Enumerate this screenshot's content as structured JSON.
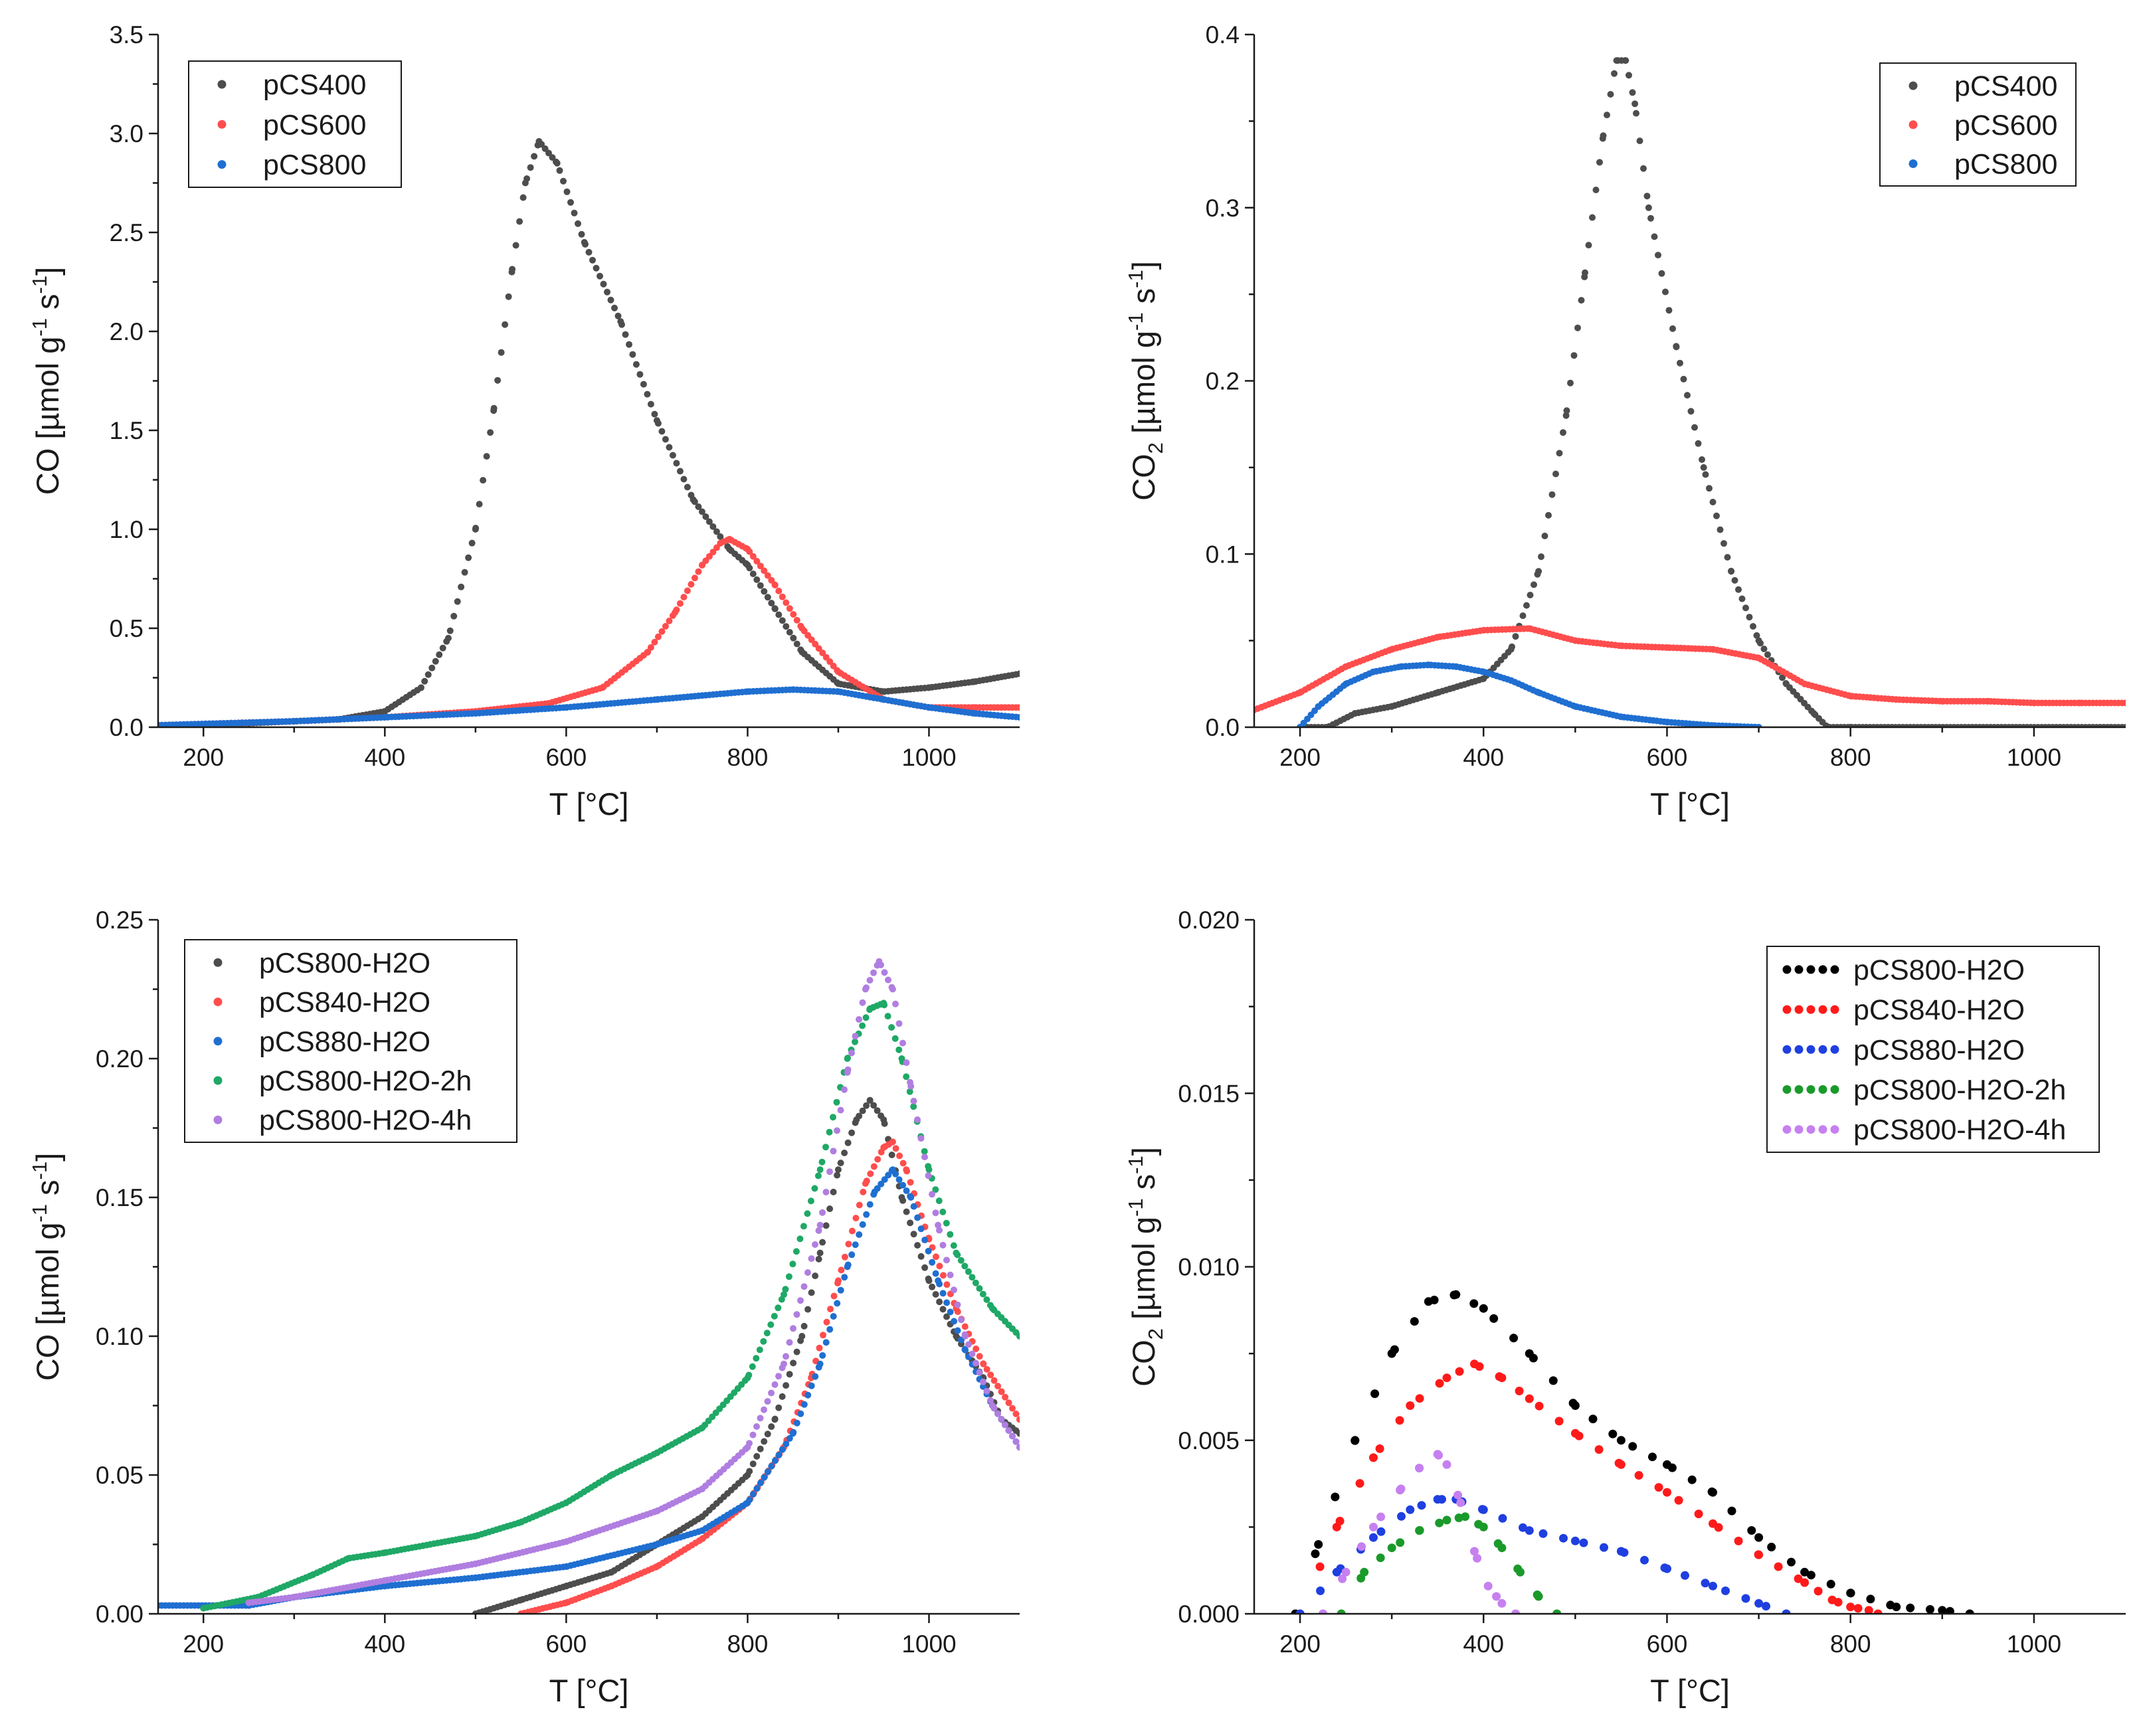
{
  "chart_data": [
    {
      "type": "scatter",
      "panel": "top-left",
      "xlabel": "T [°C]",
      "ylabel": "CO [µmol g⁻¹ s⁻¹]",
      "ylabel_parts": {
        "pre": "CO [µmol g",
        "sup1": "-1",
        "mid": " s",
        "sup2": "-1",
        "post": "]"
      },
      "xlim": [
        150,
        1100
      ],
      "ylim": [
        0,
        3.5
      ],
      "xticks": [
        200,
        400,
        600,
        800,
        1000
      ],
      "xtick_labels": [
        "200",
        "400",
        "600",
        "800",
        "1000"
      ],
      "yticks": [
        0,
        0.5,
        1.0,
        1.5,
        2.0,
        2.5,
        3.0,
        3.5
      ],
      "ytick_labels": [
        "0.0",
        "0.5",
        "1.0",
        "1.5",
        "2.0",
        "2.5",
        "3.0",
        "3.5"
      ],
      "legend_position": "top-left",
      "series": [
        {
          "name": "pCS400",
          "color": "#4d4d4d",
          "x": [
            150,
            250,
            350,
            400,
            440,
            470,
            500,
            520,
            540,
            555,
            570,
            590,
            620,
            660,
            700,
            740,
            780,
            800,
            830,
            860,
            900,
            950,
            1000,
            1050,
            1100
          ],
          "y": [
            0.01,
            0.02,
            0.04,
            0.08,
            0.2,
            0.45,
            1.0,
            1.6,
            2.3,
            2.75,
            2.96,
            2.85,
            2.45,
            2.05,
            1.55,
            1.15,
            0.9,
            0.82,
            0.6,
            0.38,
            0.22,
            0.18,
            0.2,
            0.23,
            0.27
          ]
        },
        {
          "name": "pCS600",
          "color": "#ff4d4d",
          "x": [
            150,
            300,
            400,
            500,
            580,
            640,
            690,
            720,
            750,
            770,
            780,
            800,
            830,
            860,
            900,
            950,
            1000,
            1050,
            1100
          ],
          "y": [
            0.01,
            0.03,
            0.05,
            0.08,
            0.12,
            0.2,
            0.38,
            0.58,
            0.82,
            0.93,
            0.95,
            0.9,
            0.72,
            0.5,
            0.28,
            0.14,
            0.1,
            0.1,
            0.1
          ]
        },
        {
          "name": "pCS800",
          "color": "#1f6fd1",
          "x": [
            150,
            300,
            400,
            500,
            600,
            700,
            800,
            850,
            900,
            950,
            1000,
            1050,
            1100
          ],
          "y": [
            0.01,
            0.03,
            0.05,
            0.07,
            0.1,
            0.14,
            0.18,
            0.19,
            0.18,
            0.14,
            0.1,
            0.07,
            0.05
          ]
        }
      ]
    },
    {
      "type": "scatter",
      "panel": "top-right",
      "xlabel": "T [°C]",
      "ylabel": "CO₂ [µmol g⁻¹ s⁻¹]",
      "ylabel_parts": {
        "pre": "CO",
        "sub": "2",
        "mid0": " [µmol g",
        "sup1": "-1",
        "mid": " s",
        "sup2": "-1",
        "post": "]"
      },
      "xlim": [
        150,
        1100
      ],
      "ylim": [
        0,
        0.4
      ],
      "xticks": [
        200,
        400,
        600,
        800,
        1000
      ],
      "xtick_labels": [
        "200",
        "400",
        "600",
        "800",
        "1000"
      ],
      "yticks": [
        0,
        0.1,
        0.2,
        0.3,
        0.4
      ],
      "ytick_labels": [
        "0.0",
        "0.1",
        "0.2",
        "0.3",
        "0.4"
      ],
      "legend_position": "top-right",
      "series": [
        {
          "name": "pCS400",
          "color": "#4d4d4d",
          "x": [
            200,
            230,
            260,
            300,
            350,
            400,
            430,
            460,
            490,
            510,
            530,
            545,
            555,
            565,
            580,
            610,
            640,
            670,
            700,
            730,
            760,
            775,
            800,
            1100
          ],
          "y": [
            0,
            0,
            0.008,
            0.012,
            0.02,
            0.028,
            0.045,
            0.09,
            0.18,
            0.26,
            0.34,
            0.385,
            0.385,
            0.36,
            0.3,
            0.22,
            0.15,
            0.09,
            0.05,
            0.025,
            0.008,
            0,
            0,
            0
          ]
        },
        {
          "name": "pCS600",
          "color": "#ff4d4d",
          "x": [
            150,
            200,
            250,
            300,
            350,
            400,
            450,
            500,
            550,
            600,
            650,
            700,
            750,
            800,
            850,
            900,
            950,
            1000,
            1050,
            1100
          ],
          "y": [
            0.01,
            0.02,
            0.035,
            0.045,
            0.052,
            0.056,
            0.057,
            0.05,
            0.047,
            0.046,
            0.045,
            0.04,
            0.025,
            0.018,
            0.016,
            0.015,
            0.015,
            0.014,
            0.014,
            0.014
          ]
        },
        {
          "name": "pCS800",
          "color": "#1f6fd1",
          "x": [
            200,
            220,
            250,
            280,
            310,
            340,
            370,
            400,
            430,
            460,
            500,
            550,
            600,
            650,
            700
          ],
          "y": [
            0,
            0.012,
            0.025,
            0.032,
            0.035,
            0.036,
            0.035,
            0.032,
            0.027,
            0.02,
            0.012,
            0.006,
            0.003,
            0.001,
            0
          ]
        }
      ]
    },
    {
      "type": "scatter",
      "panel": "bottom-left",
      "xlabel": "T [°C]",
      "ylabel": "CO [µmol g⁻¹ s⁻¹]",
      "ylabel_parts": {
        "pre": "CO [µmol g",
        "sup1": "-1",
        "mid": " s",
        "sup2": "-1",
        "post": "]"
      },
      "xlim": [
        150,
        1100
      ],
      "ylim": [
        0,
        0.25
      ],
      "xticks": [
        200,
        400,
        600,
        800,
        1000
      ],
      "xtick_labels": [
        "200",
        "400",
        "600",
        "800",
        "1000"
      ],
      "yticks": [
        0,
        0.05,
        0.1,
        0.15,
        0.2,
        0.25
      ],
      "ytick_labels": [
        "0.00",
        "0.05",
        "0.10",
        "0.15",
        "0.20",
        "0.25"
      ],
      "legend_position": "top-left",
      "series": [
        {
          "name": "pCS800-H2O",
          "color": "#4d4d4d",
          "x": [
            500,
            550,
            600,
            650,
            700,
            750,
            800,
            830,
            860,
            880,
            900,
            920,
            935,
            950,
            970,
            1000,
            1030,
            1060,
            1080,
            1100
          ],
          "y": [
            0,
            0.005,
            0.01,
            0.015,
            0.025,
            0.035,
            0.05,
            0.07,
            0.1,
            0.13,
            0.16,
            0.178,
            0.185,
            0.178,
            0.15,
            0.12,
            0.1,
            0.085,
            0.07,
            0.065
          ]
        },
        {
          "name": "pCS840-H2O",
          "color": "#ff4d4d",
          "x": [
            550,
            600,
            650,
            700,
            750,
            800,
            840,
            870,
            900,
            930,
            950,
            960,
            975,
            1000,
            1030,
            1060,
            1080,
            1100
          ],
          "y": [
            0,
            0.004,
            0.01,
            0.017,
            0.027,
            0.04,
            0.06,
            0.085,
            0.12,
            0.155,
            0.168,
            0.17,
            0.16,
            0.135,
            0.11,
            0.09,
            0.08,
            0.07
          ]
        },
        {
          "name": "pCS880-H2O",
          "color": "#1f6fd1",
          "x": [
            150,
            250,
            300,
            400,
            500,
            600,
            700,
            750,
            800,
            850,
            880,
            910,
            940,
            960,
            980,
            1010,
            1040,
            1070,
            1100
          ],
          "y": [
            0.003,
            0.003,
            0.006,
            0.01,
            0.013,
            0.017,
            0.025,
            0.03,
            0.04,
            0.065,
            0.09,
            0.125,
            0.152,
            0.16,
            0.15,
            0.12,
            0.095,
            0.075,
            0.06
          ]
        },
        {
          "name": "pCS800-H2O-2h",
          "color": "#1fa866",
          "x": [
            200,
            260,
            320,
            360,
            400,
            450,
            500,
            550,
            600,
            650,
            700,
            750,
            800,
            840,
            880,
            910,
            935,
            950,
            970,
            1000,
            1030,
            1070,
            1100
          ],
          "y": [
            0.002,
            0.006,
            0.014,
            0.02,
            0.022,
            0.025,
            0.028,
            0.033,
            0.04,
            0.05,
            0.058,
            0.067,
            0.085,
            0.115,
            0.16,
            0.2,
            0.218,
            0.22,
            0.2,
            0.16,
            0.13,
            0.11,
            0.1
          ]
        },
        {
          "name": "pCS800-H2O-4h",
          "color": "#b07ee0",
          "x": [
            250,
            300,
            400,
            500,
            600,
            700,
            750,
            800,
            840,
            880,
            910,
            930,
            945,
            960,
            980,
            1010,
            1040,
            1070,
            1100
          ],
          "y": [
            0.004,
            0.006,
            0.012,
            0.018,
            0.026,
            0.037,
            0.045,
            0.06,
            0.09,
            0.14,
            0.195,
            0.225,
            0.235,
            0.225,
            0.19,
            0.14,
            0.1,
            0.075,
            0.06
          ]
        }
      ]
    },
    {
      "type": "scatter",
      "panel": "bottom-right",
      "xlabel": "T [°C]",
      "ylabel": "CO₂ [µmol g⁻¹ s⁻¹]",
      "ylabel_parts": {
        "pre": "CO",
        "sub": "2",
        "mid0": " [µmol g",
        "sup1": "-1",
        "mid": " s",
        "sup2": "-1",
        "post": "]"
      },
      "xlim": [
        150,
        1100
      ],
      "ylim": [
        0,
        0.02
      ],
      "xticks": [
        200,
        400,
        600,
        800,
        1000
      ],
      "xtick_labels": [
        "200",
        "400",
        "600",
        "800",
        "1000"
      ],
      "yticks": [
        0,
        0.005,
        0.01,
        0.015,
        0.02
      ],
      "ytick_labels": [
        "0.000",
        "0.005",
        "0.010",
        "0.015",
        "0.020"
      ],
      "legend_position": "top-right",
      "series": [
        {
          "name": "pCS800-H2O",
          "color": "#000000",
          "x": [
            195,
            220,
            260,
            300,
            340,
            370,
            400,
            450,
            500,
            550,
            600,
            650,
            700,
            750,
            800,
            850,
            900,
            930
          ],
          "y": [
            0,
            0.002,
            0.005,
            0.0075,
            0.009,
            0.0092,
            0.0088,
            0.0075,
            0.006,
            0.005,
            0.0043,
            0.0035,
            0.0022,
            0.0012,
            0.0006,
            0.0002,
            0.0001,
            0
          ]
        },
        {
          "name": "pCS840-H2O",
          "color": "#ff1a1a",
          "x": [
            200,
            240,
            280,
            320,
            360,
            390,
            420,
            450,
            500,
            550,
            600,
            650,
            700,
            750,
            780,
            800,
            820,
            830
          ],
          "y": [
            0,
            0.0025,
            0.0045,
            0.006,
            0.0068,
            0.0072,
            0.0068,
            0.0062,
            0.0052,
            0.0043,
            0.0035,
            0.0026,
            0.0017,
            0.0009,
            0.0004,
            0.0002,
            0.0001,
            0
          ]
        },
        {
          "name": "pCS880-H2O",
          "color": "#1f3fe0",
          "x": [
            200,
            240,
            280,
            320,
            350,
            370,
            400,
            450,
            500,
            550,
            600,
            650,
            700,
            730
          ],
          "y": [
            0,
            0.0012,
            0.0022,
            0.003,
            0.0033,
            0.0033,
            0.003,
            0.0024,
            0.0021,
            0.0018,
            0.0013,
            0.0008,
            0.0003,
            0
          ]
        },
        {
          "name": "pCS800-H2O-2h",
          "color": "#1a9a2a",
          "x": [
            245,
            270,
            300,
            330,
            360,
            380,
            400,
            420,
            440,
            460,
            480
          ],
          "y": [
            0,
            0.0012,
            0.0019,
            0.0024,
            0.0027,
            0.0028,
            0.0025,
            0.0019,
            0.0012,
            0.0005,
            0
          ]
        },
        {
          "name": "pCS800-H2O-4h",
          "color": "#c680f0",
          "x": [
            225,
            250,
            280,
            310,
            330,
            350,
            360,
            375,
            390,
            405,
            420,
            435
          ],
          "y": [
            0,
            0.0012,
            0.0025,
            0.0036,
            0.0042,
            0.0046,
            0.0043,
            0.0032,
            0.0018,
            0.0008,
            0.0003,
            0
          ]
        }
      ]
    }
  ]
}
